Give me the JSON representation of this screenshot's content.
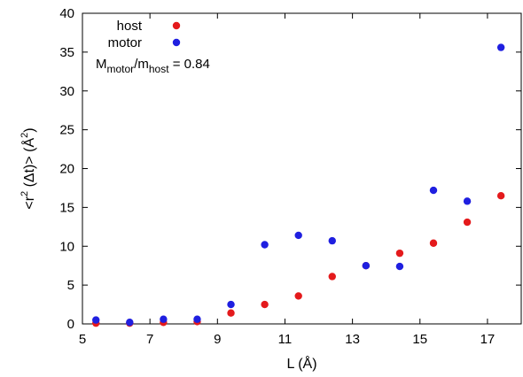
{
  "chart_data": {
    "type": "scatter",
    "xlabel": "L (Å)",
    "ylabel": "<r² (Δt)> (Å²)",
    "xlim": [
      5,
      18
    ],
    "ylim": [
      0,
      40
    ],
    "x_ticks": [
      "5",
      "7",
      "9",
      "11",
      "13",
      "15",
      "17"
    ],
    "y_ticks": [
      "0",
      "5",
      "10",
      "15",
      "20",
      "25",
      "30",
      "35",
      "40"
    ],
    "grid": false,
    "legend_position": "top-left",
    "annotation": {
      "base1": "M",
      "sub1": "motor",
      "slash": "/m",
      "sub2": "host",
      "tail": " = 0.84"
    },
    "series": [
      {
        "name": "host",
        "color": "#e41a1c",
        "x": [
          5.4,
          6.4,
          7.4,
          8.4,
          9.4,
          10.4,
          11.4,
          12.4,
          13.4,
          14.4,
          15.4,
          16.4,
          17.4
        ],
        "y": [
          0.1,
          0.1,
          0.2,
          0.3,
          1.4,
          2.5,
          3.6,
          6.1,
          7.5,
          9.1,
          10.4,
          13.1,
          16.5
        ]
      },
      {
        "name": "motor",
        "color": "#1f1fe0",
        "x": [
          5.4,
          6.4,
          7.4,
          8.4,
          9.4,
          10.4,
          11.4,
          12.4,
          13.4,
          14.4,
          15.4,
          16.4,
          17.4
        ],
        "y": [
          0.5,
          0.2,
          0.6,
          0.6,
          2.5,
          10.2,
          11.4,
          10.7,
          7.5,
          7.4,
          17.2,
          15.8,
          35.6
        ]
      }
    ]
  }
}
